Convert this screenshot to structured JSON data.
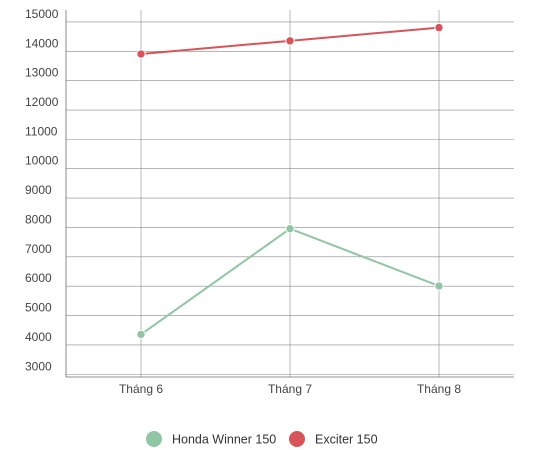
{
  "chart_data": {
    "type": "line",
    "categories": [
      "Tháng 6",
      "Tháng 7",
      "Tháng 8"
    ],
    "series": [
      {
        "name": "Honda Winner 150",
        "values": [
          4050,
          7650,
          5700
        ],
        "color": "#8fc6a3"
      },
      {
        "name": "Exciter 150",
        "values": [
          13600,
          14050,
          14500
        ],
        "color": "#d85459"
      }
    ],
    "yticks": [
      3000,
      4000,
      5000,
      6000,
      7000,
      8000,
      9000,
      10000,
      11000,
      12000,
      13000,
      14000,
      15000
    ],
    "ylim": [
      2600,
      15100
    ],
    "grid": true,
    "legend_position": "bottom",
    "title": "",
    "xlabel": "",
    "ylabel": ""
  }
}
